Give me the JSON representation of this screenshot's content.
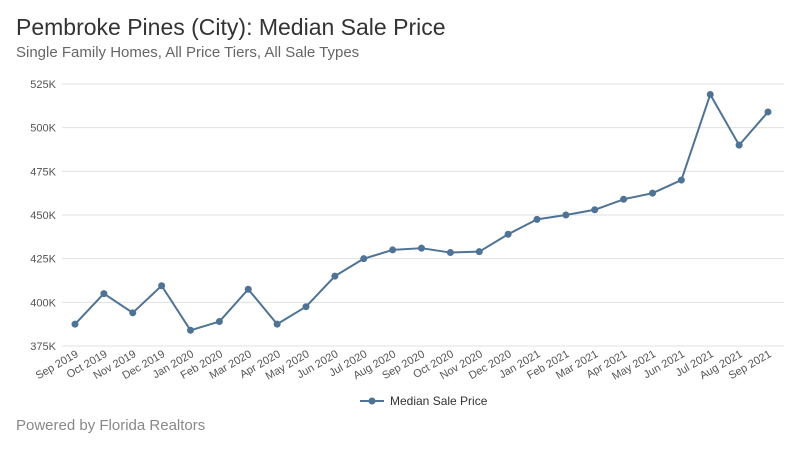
{
  "header": {
    "title": "Pembroke Pines (City): Median Sale Price",
    "subtitle": "Single Family Homes, All Price Tiers, All Sale Types"
  },
  "footer": {
    "text": "Powered by Florida Realtors"
  },
  "colors": {
    "series": "#4e7395",
    "grid": "#e0e0e0",
    "axis_text": "#555555"
  },
  "chart_data": {
    "type": "line",
    "title": "Pembroke Pines (City): Median Sale Price",
    "subtitle": "Single Family Homes, All Price Tiers, All Sale Types",
    "xlabel": "",
    "ylabel": "",
    "categories": [
      "Sep 2019",
      "Oct 2019",
      "Nov 2019",
      "Dec 2019",
      "Jan 2020",
      "Feb 2020",
      "Mar 2020",
      "Apr 2020",
      "May 2020",
      "Jun 2020",
      "Jul 2020",
      "Aug 2020",
      "Sep 2020",
      "Oct 2020",
      "Nov 2020",
      "Dec 2020",
      "Jan 2021",
      "Feb 2021",
      "Mar 2021",
      "Apr 2021",
      "May 2021",
      "Jun 2021",
      "Jul 2021",
      "Aug 2021",
      "Sep 2021"
    ],
    "series": [
      {
        "name": "Median Sale Price",
        "values": [
          387500,
          405000,
          394000,
          409500,
          384000,
          389000,
          407500,
          387500,
          397500,
          415000,
          425000,
          430000,
          431000,
          428500,
          429000,
          439000,
          447500,
          450000,
          453000,
          459000,
          462500,
          470000,
          519000,
          490000,
          509000
        ]
      }
    ],
    "ylim": [
      375000,
      525000
    ],
    "yticks": [
      375000,
      400000,
      425000,
      450000,
      475000,
      500000,
      525000
    ],
    "ytick_labels": [
      "375K",
      "400K",
      "425K",
      "450K",
      "475K",
      "500K",
      "525K"
    ],
    "grid": true,
    "legend_position": "bottom"
  }
}
